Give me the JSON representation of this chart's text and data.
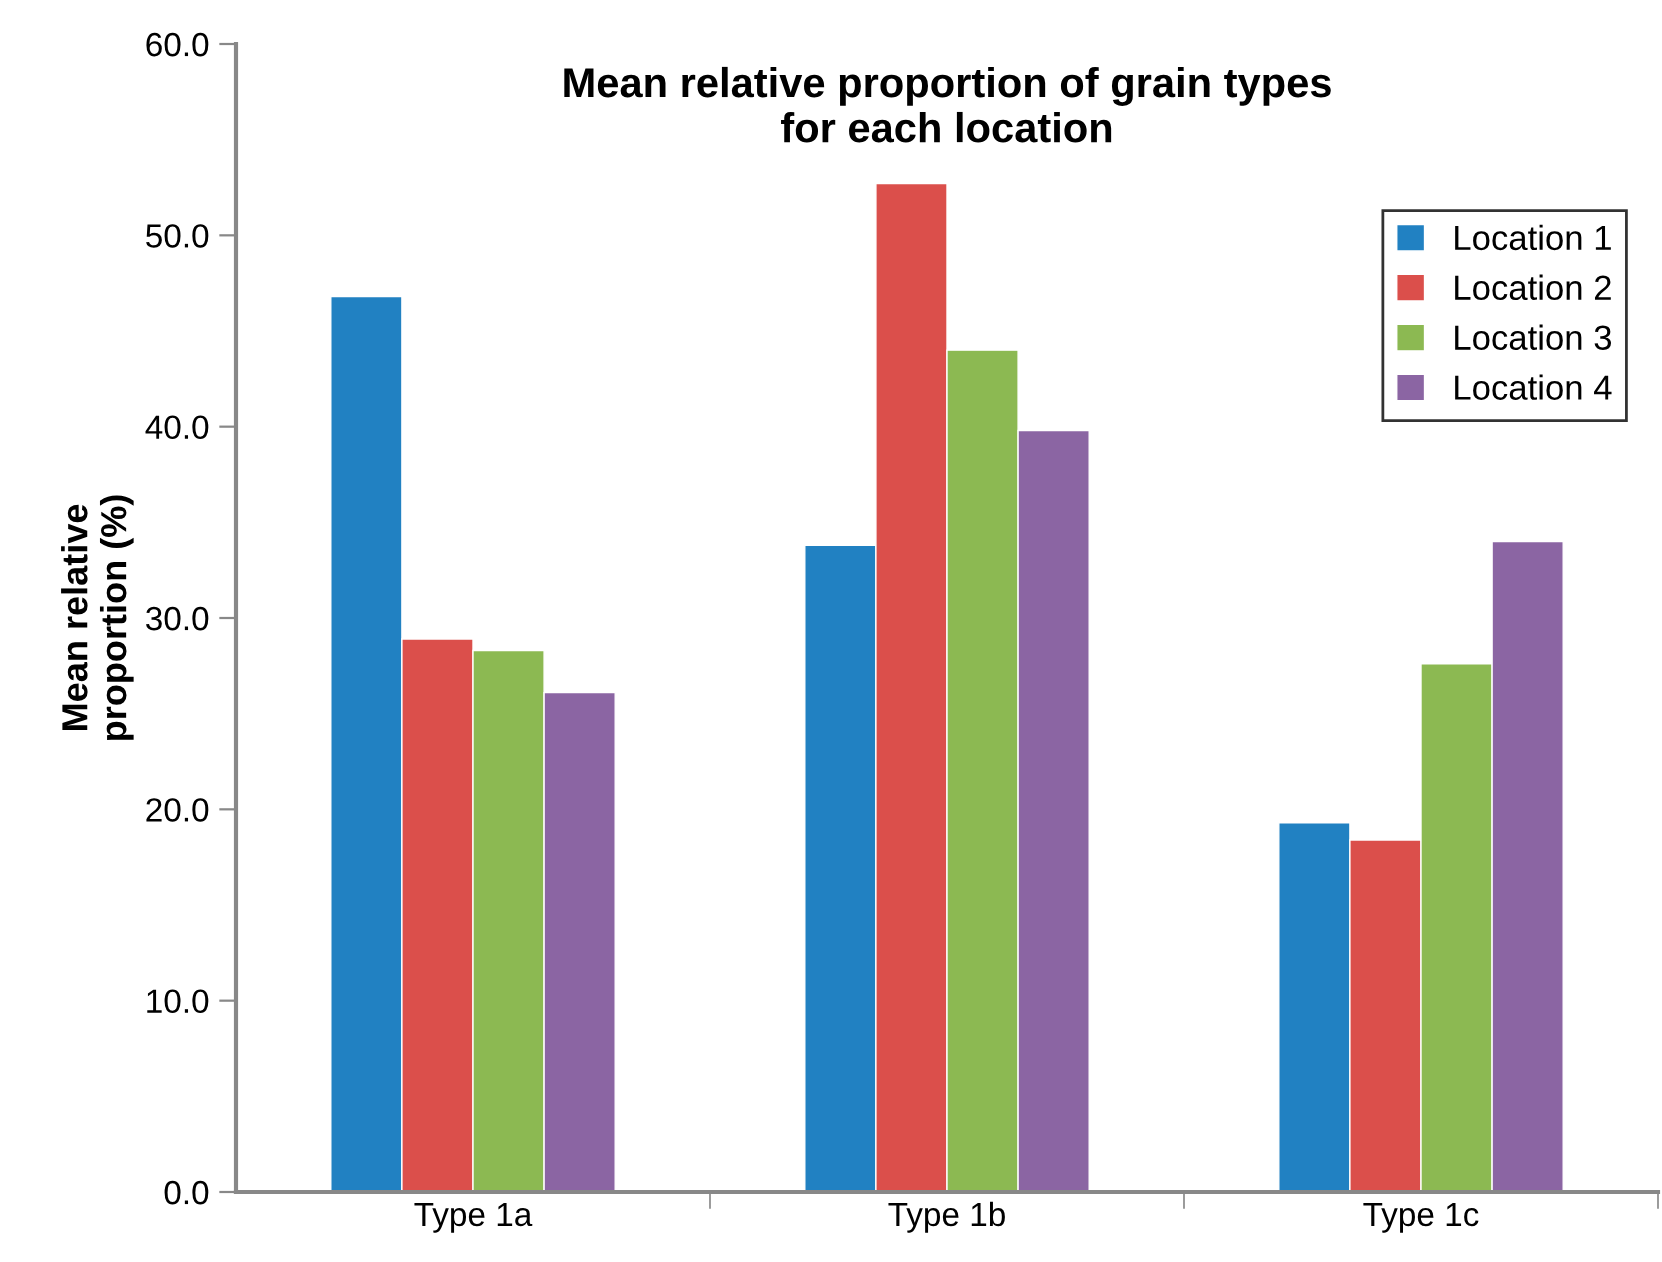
{
  "chart_data": {
    "type": "bar",
    "title": "Mean relative proportion of grain types\nfor each location",
    "ylabel": "Mean relative\nproportion (%)",
    "categories": [
      "Type 1a",
      "Type 1b",
      "Type 1c"
    ],
    "series": [
      {
        "name": "Location 1",
        "color": "#2181c2",
        "values": [
          46.8,
          33.8,
          19.3
        ]
      },
      {
        "name": "Location 2",
        "color": "#db4f4b",
        "values": [
          28.9,
          52.7,
          18.4
        ]
      },
      {
        "name": "Location 3",
        "color": "#8cb952",
        "values": [
          28.3,
          44.0,
          27.6
        ]
      },
      {
        "name": "Location 4",
        "color": "#8b65a3",
        "values": [
          26.1,
          39.8,
          34.0
        ]
      }
    ],
    "ylim": [
      0,
      60
    ],
    "yticks": [
      {
        "value": 0,
        "label": "0.0"
      },
      {
        "value": 10,
        "label": "10.0"
      },
      {
        "value": 20,
        "label": "20.0"
      },
      {
        "value": 30,
        "label": "30.0"
      },
      {
        "value": 40,
        "label": "40.0"
      },
      {
        "value": 50,
        "label": "50.0"
      },
      {
        "value": 60,
        "label": "60.0"
      }
    ],
    "grid": false,
    "legend": "top right"
  }
}
